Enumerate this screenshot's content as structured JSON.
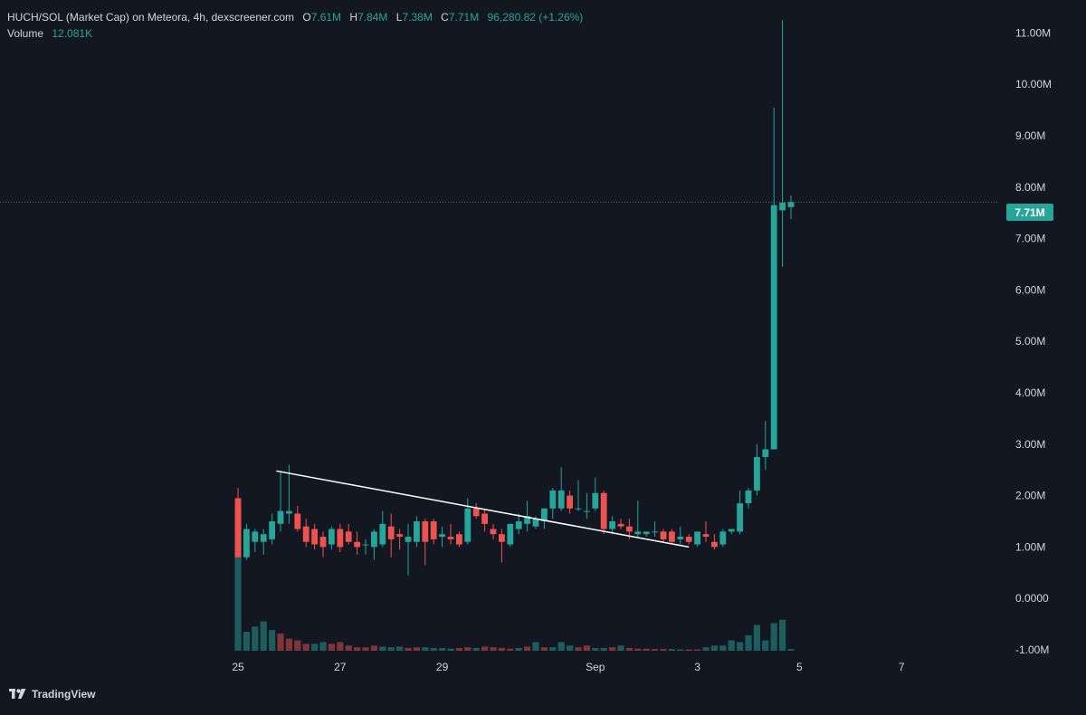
{
  "header": {
    "title": "HUCH/SOL (Market Cap) on Meteora, 4h, dexscreener.com",
    "o_label": "O",
    "o_value": "7.61M",
    "h_label": "H",
    "h_value": "7.84M",
    "l_label": "L",
    "l_value": "7.38M",
    "c_label": "C",
    "c_value": "7.71M",
    "change": "96,280.82 (+1.26%)",
    "volume_label": "Volume",
    "volume_value": "12.081K"
  },
  "price_badge": "7.71M",
  "footer": {
    "brand": "TradingView"
  },
  "colors": {
    "background": "#131722",
    "up": "#26a69a",
    "down": "#ef5350",
    "text": "#d1d4dc",
    "trendline": "#ffffff"
  },
  "chart_data": {
    "type": "candlestick",
    "title": "HUCH/SOL (Market Cap) on Meteora, 4h, dexscreener.com",
    "y_ticks": [
      "11.00M",
      "10.00M",
      "9.00M",
      "8.00M",
      "7.00M",
      "6.00M",
      "5.00M",
      "4.00M",
      "3.00M",
      "2.00M",
      "1.00M",
      "0.0000",
      "-1.00M"
    ],
    "y_tick_values": [
      11,
      10,
      9,
      8,
      7,
      6,
      5,
      4,
      3,
      2,
      1,
      0,
      -1
    ],
    "ylim": [
      -1.0,
      11.2
    ],
    "y_unit": "M",
    "x_ticks": [
      "25",
      "27",
      "29",
      "Sep",
      "3",
      "5",
      "7"
    ],
    "x_tick_slots": [
      0,
      12,
      24,
      42,
      54,
      66,
      78
    ],
    "x_range_slots": [
      -2.5,
      90
    ],
    "last_price": 7.71,
    "trendline": {
      "from": [
        4.5,
        2.48
      ],
      "to": [
        53,
        1.0
      ]
    },
    "candles": [
      [
        1.95,
        2.15,
        0.8,
        0.8
      ],
      [
        0.8,
        1.45,
        0.75,
        1.35
      ],
      [
        1.1,
        1.35,
        0.9,
        1.3
      ],
      [
        1.1,
        1.35,
        0.85,
        1.25
      ],
      [
        1.15,
        1.65,
        1.05,
        1.5
      ],
      [
        1.45,
        2.45,
        1.3,
        1.7
      ],
      [
        1.65,
        2.6,
        1.45,
        1.7
      ],
      [
        1.65,
        1.8,
        1.3,
        1.35
      ],
      [
        1.4,
        1.55,
        1.0,
        1.1
      ],
      [
        1.35,
        1.45,
        0.95,
        1.05
      ],
      [
        1.2,
        1.3,
        0.8,
        1.0
      ],
      [
        1.05,
        1.4,
        0.95,
        1.35
      ],
      [
        1.35,
        1.45,
        0.9,
        1.0
      ],
      [
        1.3,
        1.45,
        1.05,
        1.1
      ],
      [
        1.1,
        1.3,
        0.85,
        1.0
      ],
      [
        1.05,
        1.15,
        0.85,
        1.05
      ],
      [
        1.0,
        1.35,
        0.75,
        1.3
      ],
      [
        1.05,
        1.7,
        1.0,
        1.45
      ],
      [
        1.4,
        1.65,
        0.8,
        1.15
      ],
      [
        1.25,
        1.35,
        0.95,
        1.2
      ],
      [
        1.1,
        1.45,
        0.45,
        1.2
      ],
      [
        1.1,
        1.6,
        1.0,
        1.5
      ],
      [
        1.5,
        1.55,
        0.65,
        1.1
      ],
      [
        1.5,
        1.55,
        1.05,
        1.15
      ],
      [
        1.2,
        1.4,
        1.0,
        1.25
      ],
      [
        1.2,
        1.45,
        1.05,
        1.15
      ],
      [
        1.25,
        1.3,
        1.0,
        1.05
      ],
      [
        1.1,
        1.95,
        1.05,
        1.75
      ],
      [
        1.75,
        1.85,
        1.55,
        1.6
      ],
      [
        1.65,
        1.75,
        1.3,
        1.45
      ],
      [
        1.35,
        1.45,
        1.15,
        1.25
      ],
      [
        1.25,
        1.35,
        0.7,
        1.1
      ],
      [
        1.05,
        1.45,
        1.0,
        1.45
      ],
      [
        1.35,
        1.65,
        1.25,
        1.5
      ],
      [
        1.45,
        1.9,
        1.3,
        1.6
      ],
      [
        1.4,
        1.6,
        1.35,
        1.55
      ],
      [
        1.5,
        1.7,
        1.35,
        1.75
      ],
      [
        1.75,
        2.15,
        1.55,
        2.1
      ],
      [
        1.75,
        2.55,
        1.7,
        2.1
      ],
      [
        2.0,
        2.1,
        1.65,
        1.75
      ],
      [
        1.75,
        2.3,
        1.7,
        1.75
      ],
      [
        1.7,
        2.05,
        1.55,
        1.7
      ],
      [
        1.75,
        2.35,
        1.7,
        2.05
      ],
      [
        2.05,
        2.1,
        1.25,
        1.35
      ],
      [
        1.35,
        1.6,
        1.25,
        1.5
      ],
      [
        1.45,
        1.55,
        1.35,
        1.4
      ],
      [
        1.4,
        1.55,
        1.15,
        1.3
      ],
      [
        1.25,
        1.9,
        1.2,
        1.3
      ],
      [
        1.25,
        1.3,
        1.2,
        1.3
      ],
      [
        1.3,
        1.5,
        1.2,
        1.3
      ],
      [
        1.3,
        1.35,
        1.1,
        1.15
      ],
      [
        1.3,
        1.35,
        1.05,
        1.1
      ],
      [
        1.15,
        1.4,
        1.05,
        1.2
      ],
      [
        1.2,
        1.25,
        1.05,
        1.1
      ],
      [
        1.05,
        1.3,
        1.0,
        1.3
      ],
      [
        1.25,
        1.5,
        1.1,
        1.2
      ],
      [
        1.1,
        1.25,
        0.95,
        1.0
      ],
      [
        1.05,
        1.35,
        1.0,
        1.3
      ],
      [
        1.3,
        1.35,
        1.25,
        1.35
      ],
      [
        1.3,
        2.1,
        1.25,
        1.85
      ],
      [
        1.85,
        2.15,
        1.75,
        2.1
      ],
      [
        2.1,
        3.0,
        2.0,
        2.75
      ],
      [
        2.75,
        3.45,
        2.5,
        2.9
      ],
      [
        2.9,
        9.55,
        2.9,
        7.65
      ],
      [
        7.55,
        11.25,
        6.45,
        7.7
      ],
      [
        7.61,
        7.84,
        7.38,
        7.71
      ]
    ],
    "volume": [
      [
        4.2,
        "up"
      ],
      [
        0.55,
        "up"
      ],
      [
        0.7,
        "up"
      ],
      [
        0.85,
        "up"
      ],
      [
        0.6,
        "up"
      ],
      [
        0.5,
        "down"
      ],
      [
        0.35,
        "down"
      ],
      [
        0.3,
        "down"
      ],
      [
        0.2,
        "down"
      ],
      [
        0.2,
        "up"
      ],
      [
        0.25,
        "up"
      ],
      [
        0.2,
        "down"
      ],
      [
        0.25,
        "down"
      ],
      [
        0.15,
        "down"
      ],
      [
        0.1,
        "down"
      ],
      [
        0.1,
        "down"
      ],
      [
        0.15,
        "down"
      ],
      [
        0.12,
        "up"
      ],
      [
        0.1,
        "up"
      ],
      [
        0.12,
        "up"
      ],
      [
        0.08,
        "down"
      ],
      [
        0.1,
        "down"
      ],
      [
        0.1,
        "up"
      ],
      [
        0.08,
        "up"
      ],
      [
        0.08,
        "up"
      ],
      [
        0.06,
        "up"
      ],
      [
        0.08,
        "down"
      ],
      [
        0.1,
        "down"
      ],
      [
        0.08,
        "up"
      ],
      [
        0.12,
        "down"
      ],
      [
        0.1,
        "down"
      ],
      [
        0.08,
        "down"
      ],
      [
        0.06,
        "down"
      ],
      [
        0.08,
        "up"
      ],
      [
        0.12,
        "down"
      ],
      [
        0.25,
        "up"
      ],
      [
        0.1,
        "down"
      ],
      [
        0.1,
        "up"
      ],
      [
        0.25,
        "up"
      ],
      [
        0.15,
        "up"
      ],
      [
        0.1,
        "down"
      ],
      [
        0.15,
        "down"
      ],
      [
        0.08,
        "up"
      ],
      [
        0.08,
        "up"
      ],
      [
        0.1,
        "down"
      ],
      [
        0.15,
        "up"
      ],
      [
        0.08,
        "down"
      ],
      [
        0.06,
        "down"
      ],
      [
        0.06,
        "down"
      ],
      [
        0.05,
        "down"
      ],
      [
        0.05,
        "down"
      ],
      [
        0.05,
        "up"
      ],
      [
        0.04,
        "up"
      ],
      [
        0.04,
        "down"
      ],
      [
        0.04,
        "down"
      ],
      [
        0.1,
        "up"
      ],
      [
        0.15,
        "up"
      ],
      [
        0.15,
        "up"
      ],
      [
        0.3,
        "up"
      ],
      [
        0.25,
        "up"
      ],
      [
        0.45,
        "up"
      ],
      [
        0.75,
        "up"
      ],
      [
        0.3,
        "up"
      ],
      [
        0.8,
        "up"
      ],
      [
        0.9,
        "up"
      ],
      [
        0.05,
        "up"
      ]
    ]
  }
}
